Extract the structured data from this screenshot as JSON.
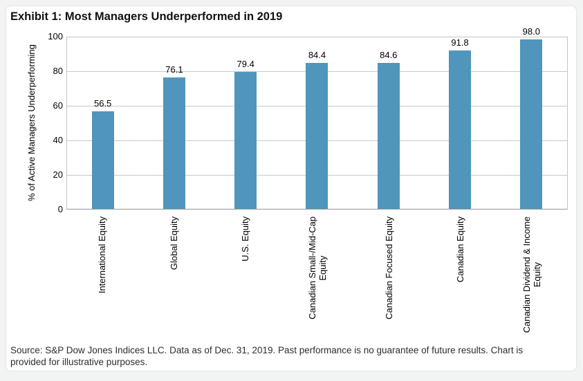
{
  "chart_title": "Exhibit 1: Most Managers Underperformed in 2019",
  "chart_data": {
    "type": "bar",
    "title": "Exhibit 1: Most Managers Underperformed in 2019",
    "categories": [
      "International Equity",
      "Global Equity",
      "U.S. Equity",
      "Canadian Small-/Mid-Cap Equity",
      "Canadian Focused Equity",
      "Canadian Equity",
      "Canadian Dividend & Income Equity"
    ],
    "category_lines": [
      [
        "International Equity",
        ""
      ],
      [
        "Global Equity",
        ""
      ],
      [
        "U.S. Equity",
        ""
      ],
      [
        "Canadian Small-/Mid-Cap",
        "Equity"
      ],
      [
        "Canadian Focused Equity",
        ""
      ],
      [
        "Canadian Equity",
        ""
      ],
      [
        "Canadian Dividend & Income",
        "Equity"
      ]
    ],
    "values": [
      56.5,
      76.1,
      79.4,
      84.4,
      84.6,
      91.8,
      98.0
    ],
    "value_labels": [
      "56.5",
      "76.1",
      "79.4",
      "84.4",
      "84.6",
      "91.8",
      "98.0"
    ],
    "xlabel": "",
    "ylabel": "% of Active Managers Underperforming",
    "ylim": [
      0,
      100
    ],
    "yticks": [
      0,
      20,
      40,
      60,
      80,
      100
    ],
    "grid": true,
    "legend_position": "none",
    "bar_color": "#4F95BC",
    "gridline_color": "#c9c9c9"
  },
  "footer": {
    "source_line1": "Source: S&P Dow Jones Indices LLC. Data as of Dec. 31, 2019. Past performance is no guarantee of future results. Chart is",
    "source_line2": "provided for illustrative purposes."
  }
}
